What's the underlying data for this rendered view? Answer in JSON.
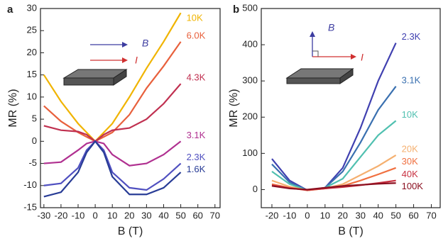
{
  "chart_data": [
    {
      "type": "line",
      "title": "a",
      "xlabel": "B (T)",
      "ylabel": "MR (%)",
      "annotations": [
        "B",
        "I"
      ],
      "x": [
        -30,
        -20,
        -10,
        -5,
        0,
        5,
        10,
        20,
        30,
        40,
        50
      ],
      "xlim": [
        -32,
        73
      ],
      "ylim": [
        -15,
        30
      ],
      "xticks": [
        -30,
        -20,
        -10,
        0,
        10,
        20,
        30,
        40,
        50,
        60,
        70
      ],
      "yticks": [
        -15,
        -10,
        -5,
        0,
        5,
        10,
        15,
        20,
        25,
        30
      ],
      "series": [
        {
          "name": "10K",
          "color": "#f0b400",
          "values": [
            15,
            9,
            4,
            2,
            0,
            2,
            4,
            10,
            16.5,
            22.5,
            29
          ]
        },
        {
          "name": "6.0K",
          "color": "#e8603c",
          "values": [
            8,
            4.5,
            2,
            1,
            0,
            1,
            2,
            6,
            12,
            17,
            22.5
          ]
        },
        {
          "name": "4.3K",
          "color": "#c03050",
          "values": [
            3.5,
            2.5,
            2.2,
            1.5,
            0,
            1.5,
            2.5,
            3,
            5,
            8.5,
            13
          ]
        },
        {
          "name": "3.1K",
          "color": "#b03090",
          "values": [
            -5,
            -4.7,
            -2,
            -0.5,
            0,
            -0.5,
            -3,
            -5.5,
            -5,
            -3,
            0
          ]
        },
        {
          "name": "2.3K",
          "color": "#5050c0",
          "values": [
            -10,
            -9.5,
            -6,
            -2,
            0,
            -2,
            -7,
            -10.5,
            -11,
            -8.5,
            -5
          ]
        },
        {
          "name": "1.6K",
          "color": "#283c96",
          "values": [
            -12.5,
            -11.5,
            -7,
            -2.5,
            0,
            -2.5,
            -8,
            -12,
            -12,
            -10.5,
            -7
          ]
        }
      ]
    },
    {
      "type": "line",
      "title": "b",
      "xlabel": "B (T)",
      "ylabel": "MR (%)",
      "annotations": [
        "B",
        "I"
      ],
      "x": [
        -20,
        -10,
        0,
        10,
        20,
        30,
        40,
        50
      ],
      "xlim": [
        -26,
        75
      ],
      "ylim": [
        -50,
        500
      ],
      "xticks": [
        -20,
        -10,
        0,
        10,
        20,
        30,
        40,
        50,
        60,
        70
      ],
      "yticks": [
        0,
        100,
        200,
        300,
        400,
        500
      ],
      "series": [
        {
          "name": "2.3K",
          "color": "#4040b0",
          "values": [
            85,
            25,
            -2,
            5,
            60,
            170,
            300,
            405
          ]
        },
        {
          "name": "3.1K",
          "color": "#3a70b0",
          "values": [
            70,
            20,
            -2,
            5,
            50,
            130,
            220,
            285
          ]
        },
        {
          "name": "10K",
          "color": "#50c0b0",
          "values": [
            50,
            15,
            -2,
            5,
            30,
            90,
            150,
            190
          ]
        },
        {
          "name": "20K",
          "color": "#f5b070",
          "values": [
            25,
            8,
            -2,
            3,
            15,
            40,
            65,
            95
          ]
        },
        {
          "name": "30K",
          "color": "#f07040",
          "values": [
            15,
            5,
            -2,
            3,
            10,
            25,
            42,
            60
          ]
        },
        {
          "name": "40K",
          "color": "#c83040",
          "values": [
            12,
            4,
            -1,
            3,
            7,
            12,
            18,
            25
          ]
        },
        {
          "name": "100K",
          "color": "#8b1020",
          "values": [
            10,
            3,
            0,
            5,
            10,
            13,
            16,
            18
          ]
        }
      ]
    }
  ]
}
